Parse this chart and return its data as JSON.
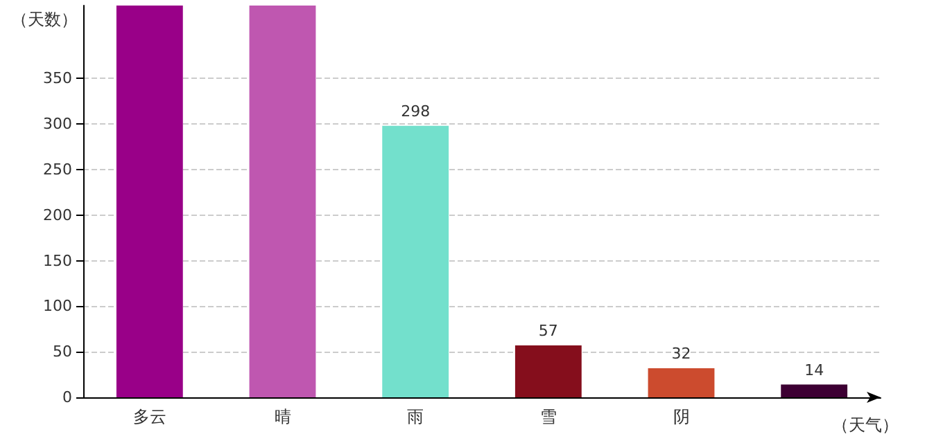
{
  "chart_data": {
    "type": "bar",
    "categories": [
      "多云",
      "晴",
      "雨",
      "雪",
      "阴",
      null
    ],
    "values": [
      430,
      430,
      298,
      57,
      32,
      14
    ],
    "colors": [
      "#990088",
      "#bf57b0",
      "#73e0cc",
      "#850e1c",
      "#cc4b2e",
      "#3d0033"
    ],
    "value_labels": [
      null,
      null,
      "298",
      "57",
      "32",
      "14"
    ],
    "xlabel": "（天气）",
    "ylabel": "（天数）",
    "ylim": [
      0,
      430
    ],
    "yticks": [
      0,
      50,
      100,
      150,
      200,
      250,
      300,
      350
    ],
    "grid": "y"
  }
}
